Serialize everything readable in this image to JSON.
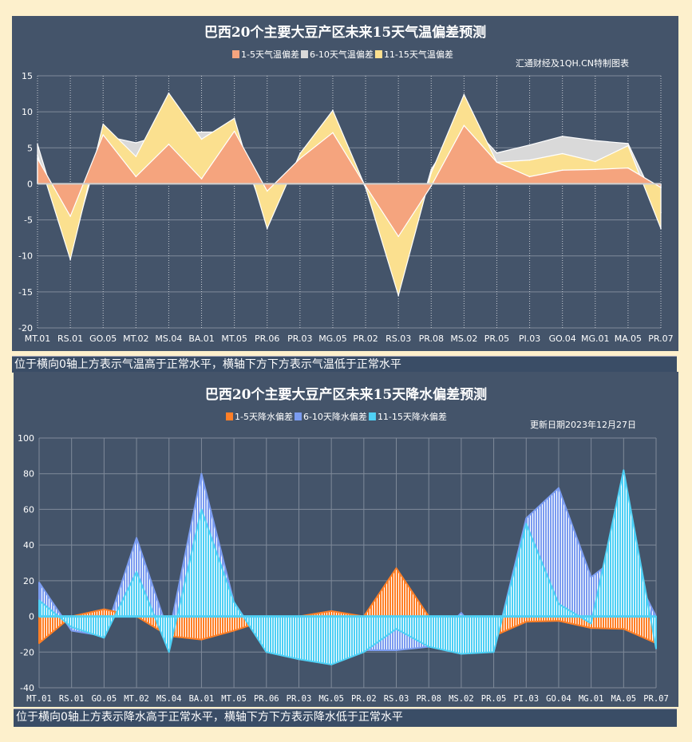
{
  "chart_data": [
    {
      "type": "area",
      "title": "巴西20个主要大豆产区未来15天气温偏差预测",
      "note": "汇通财经及1QH.CN特制图表",
      "categories": [
        "MT.01",
        "RS.01",
        "GO.05",
        "MT.02",
        "MS.04",
        "BA.01",
        "MT.05",
        "PR.06",
        "PR.03",
        "MG.05",
        "PR.02",
        "RS.03",
        "PR.08",
        "MS.02",
        "PR.05",
        "PI.03",
        "GO.04",
        "MG.01",
        "MA.05",
        "PR.07"
      ],
      "ylim": [
        -20,
        15
      ],
      "yticks": [
        15,
        10,
        5,
        0,
        -5,
        -10,
        -15,
        -20
      ],
      "grid": true,
      "legend": "top",
      "series": [
        {
          "name": "1-5天气温偏差",
          "color": "#f5a47e",
          "values": [
            3.5,
            -4.5,
            6.8,
            1.0,
            5.5,
            0.7,
            7.3,
            -1.0,
            3.5,
            7.1,
            -0.3,
            -7.3,
            -0.3,
            8.1,
            3.0,
            1.0,
            1.9,
            2.0,
            2.2,
            -0.5
          ]
        },
        {
          "name": "6-10天气温偏差",
          "color": "#d9d9d9",
          "values": [
            5.5,
            -9.5,
            6.7,
            5.7,
            7.0,
            7.2,
            7.2,
            -5.2,
            4.0,
            7.5,
            -0.5,
            -14.0,
            2.0,
            9.2,
            4.3,
            5.4,
            6.6,
            6.0,
            5.6,
            -4.0
          ]
        },
        {
          "name": "11-15天气温偏差",
          "color": "#fbe08f",
          "values": [
            4.0,
            -10.5,
            8.3,
            3.8,
            12.6,
            6.2,
            9.1,
            -6.2,
            4.2,
            10.2,
            -0.5,
            -15.5,
            1.5,
            12.4,
            3.0,
            3.3,
            4.2,
            3.1,
            5.3,
            -6.2
          ]
        }
      ],
      "caption": "位于横向0轴上方表示气温高于正常水平，横轴下方下方表示气温低于正常水平"
    },
    {
      "type": "area",
      "title": "巴西20个主要大豆产区未来15天降水偏差预测",
      "note": "更新日期2023年12月27日",
      "categories": [
        "MT.01",
        "RS.01",
        "GO.05",
        "MT.02",
        "MS.04",
        "BA.01",
        "MT.05",
        "PR.06",
        "PR.03",
        "MG.05",
        "PR.02",
        "RS.03",
        "PR.08",
        "MS.02",
        "PR.05",
        "PI.03",
        "GO.04",
        "MG.01",
        "MA.05",
        "PR.07"
      ],
      "ylim": [
        -40,
        100
      ],
      "yticks": [
        100,
        80,
        60,
        40,
        20,
        0,
        -20,
        -40
      ],
      "grid": true,
      "legend": "top",
      "series": [
        {
          "name": "1-5天降水偏差",
          "color": "#ff7f27",
          "values": [
            -15,
            0,
            4,
            0,
            -11,
            -13,
            -8,
            -2,
            0,
            3,
            0,
            27,
            0,
            0,
            -11,
            -3,
            -2.5,
            -6.5,
            -7,
            -15
          ]
        },
        {
          "name": "6-10天降水偏差",
          "color": "#7b9cf0",
          "values": [
            19,
            -8,
            -11,
            44,
            -10,
            80,
            8,
            -19,
            -24,
            -26,
            -19,
            -19,
            -17,
            2,
            -20,
            55,
            72,
            22,
            36,
            0
          ]
        },
        {
          "name": "11-15天降水偏差",
          "color": "#4fd0f5",
          "values": [
            9,
            -6,
            -12,
            25,
            -20,
            60,
            8,
            -20,
            -24,
            -27,
            -20,
            -7,
            -17,
            -21,
            -20,
            52,
            7,
            -4,
            82,
            -18
          ]
        }
      ],
      "caption": "位于横向0轴上方表示降水高于正常水平，横轴下方下方表示降水低于正常水平"
    }
  ]
}
